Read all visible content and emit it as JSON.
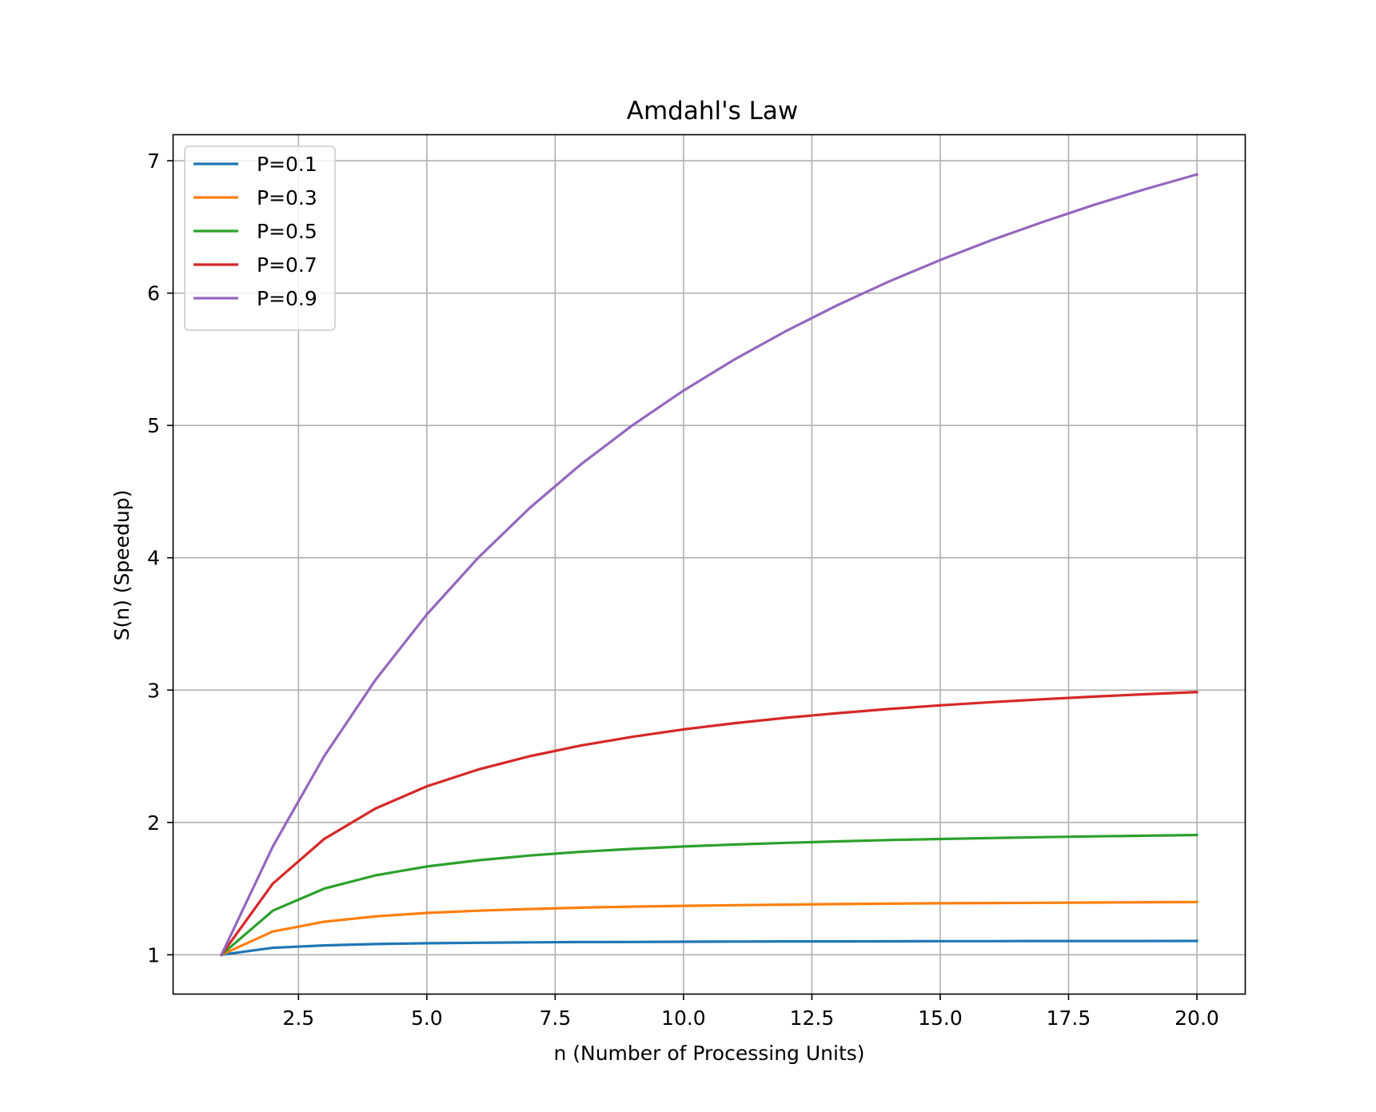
{
  "chart_data": {
    "type": "line",
    "title": "Amdahl's Law",
    "xlabel": "n (Number of Processing Units)",
    "ylabel": "S(n) (Speedup)",
    "xlim": [
      0.05,
      20.95
    ],
    "ylim": [
      0.7,
      7.2
    ],
    "xticks": [
      2.5,
      5.0,
      7.5,
      10.0,
      12.5,
      15.0,
      17.5,
      20.0
    ],
    "xtick_labels": [
      "2.5",
      "5.0",
      "7.5",
      "10.0",
      "12.5",
      "15.0",
      "17.5",
      "20.0"
    ],
    "yticks": [
      1,
      2,
      3,
      4,
      5,
      6,
      7
    ],
    "ytick_labels": [
      "1",
      "2",
      "3",
      "4",
      "5",
      "6",
      "7"
    ],
    "grid": true,
    "legend_position": "upper-left",
    "x": [
      1,
      2,
      3,
      4,
      5,
      6,
      7,
      8,
      9,
      10,
      11,
      12,
      13,
      14,
      15,
      16,
      17,
      18,
      19,
      20
    ],
    "series": [
      {
        "name": "P=0.1",
        "color": "#1f77b4",
        "values": [
          1.0,
          1.053,
          1.071,
          1.081,
          1.087,
          1.091,
          1.094,
          1.096,
          1.097,
          1.099,
          1.1,
          1.101,
          1.101,
          1.102,
          1.103,
          1.103,
          1.104,
          1.104,
          1.104,
          1.105
        ]
      },
      {
        "name": "P=0.3",
        "color": "#ff7f0e",
        "values": [
          1.0,
          1.176,
          1.25,
          1.29,
          1.316,
          1.333,
          1.346,
          1.356,
          1.364,
          1.37,
          1.375,
          1.379,
          1.383,
          1.386,
          1.389,
          1.391,
          1.393,
          1.395,
          1.397,
          1.399
        ]
      },
      {
        "name": "P=0.5",
        "color": "#2ca02c",
        "values": [
          1.0,
          1.333,
          1.5,
          1.6,
          1.667,
          1.714,
          1.75,
          1.778,
          1.8,
          1.818,
          1.833,
          1.846,
          1.857,
          1.867,
          1.875,
          1.882,
          1.889,
          1.895,
          1.9,
          1.905
        ]
      },
      {
        "name": "P=0.7",
        "color": "#d62728",
        "values": [
          1.0,
          1.538,
          1.875,
          2.105,
          2.273,
          2.4,
          2.5,
          2.581,
          2.647,
          2.703,
          2.75,
          2.791,
          2.826,
          2.857,
          2.885,
          2.909,
          2.931,
          2.951,
          2.969,
          2.985
        ]
      },
      {
        "name": "P=0.9",
        "color": "#9467bd",
        "values": [
          1.0,
          1.818,
          2.5,
          3.077,
          3.571,
          4.0,
          4.375,
          4.706,
          5.0,
          5.263,
          5.5,
          5.714,
          5.909,
          6.087,
          6.25,
          6.4,
          6.538,
          6.667,
          6.786,
          6.897
        ]
      }
    ]
  }
}
